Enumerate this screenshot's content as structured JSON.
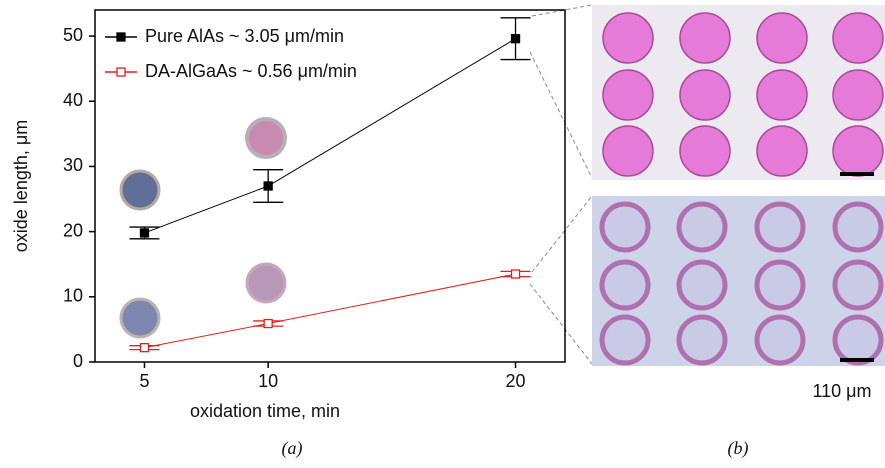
{
  "chart_data": {
    "type": "line",
    "x_label": "oxidation time, min",
    "y_label": "oxide length, μm",
    "x": [
      5,
      10,
      20
    ],
    "xlim": [
      3,
      22
    ],
    "xticks": [
      5,
      10,
      20
    ],
    "ylim": [
      0,
      54
    ],
    "yticks": [
      0,
      10,
      20,
      30,
      40,
      50
    ],
    "legend": "top-left",
    "series": [
      {
        "name": "Pure AlAs ~ 3.05 μm/min",
        "color": "#000000",
        "marker": "square-filled",
        "values": [
          19.8,
          27,
          49.6
        ],
        "errors": [
          0.9,
          2.5,
          3.2
        ]
      },
      {
        "name": "DA-AlGaAs ~ 0.56 μm/min",
        "color": "#e0201e",
        "marker": "square-open",
        "values": [
          2.2,
          5.9,
          13.5
        ],
        "errors": [
          0.3,
          0.4,
          0.4
        ]
      }
    ]
  },
  "captions": {
    "a": "(a)",
    "b": "(b)"
  },
  "scale_label": "110 μm"
}
